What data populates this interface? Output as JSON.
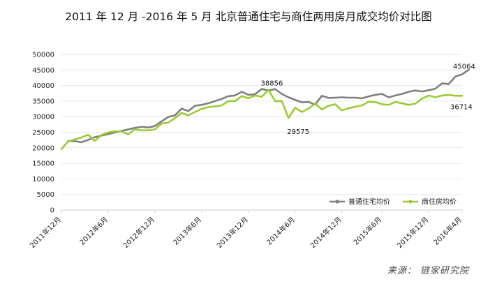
{
  "chart_data": {
    "type": "line",
    "title": "2011 年 12 月 -2016 年 5 月 北京普通住宅与商住两用房月成交均价对比图",
    "ylim": [
      0,
      50000
    ],
    "y_ticks": [
      "50000",
      "45000",
      "40000",
      "35000",
      "30000",
      "25000",
      "20000",
      "15000",
      "10000",
      "5000",
      "0"
    ],
    "x_ticks": [
      "2011年12月",
      "2012年6月",
      "2012年12月",
      "2013年6月",
      "2013年12月",
      "2014年6月",
      "2014年12月",
      "2015年6月",
      "2015年12月",
      "2016年4月"
    ],
    "grid": true,
    "legend_position": "bottom-right",
    "series": [
      {
        "name": "普通住宅均价",
        "color": "#7f7f7f",
        "x_start": 1,
        "values": [
          22200,
          22100,
          21800,
          22500,
          23400,
          23900,
          24400,
          24900,
          25400,
          25900,
          26400,
          26700,
          26500,
          27000,
          28500,
          29900,
          30400,
          32600,
          31800,
          33500,
          33800,
          34300,
          35000,
          35700,
          36600,
          36800,
          38000,
          37000,
          37200,
          38900,
          38400,
          38856,
          37300,
          36200,
          35400,
          34600,
          34700,
          33900,
          36700,
          36000,
          36100,
          36200,
          36100,
          36100,
          35900,
          36500,
          37000,
          37300,
          36200,
          36800,
          37300,
          38000,
          38400,
          38100,
          38500,
          39000,
          40700,
          40500,
          42900,
          43600,
          45064
        ]
      },
      {
        "name": "商住房均价",
        "color": "#99cc33",
        "x_start": 0,
        "values": [
          19600,
          22000,
          22700,
          23300,
          24200,
          22200,
          24100,
          24900,
          25300,
          25200,
          24300,
          25900,
          25600,
          25600,
          25900,
          27800,
          28100,
          29500,
          31200,
          30400,
          31500,
          32500,
          33100,
          33300,
          33600,
          35000,
          35000,
          36600,
          35900,
          36800,
          36400,
          38600,
          35000,
          35000,
          29575,
          32900,
          31500,
          32600,
          34200,
          32300,
          33500,
          34000,
          32000,
          32700,
          33200,
          33600,
          34800,
          34700,
          34000,
          33800,
          34700,
          34300,
          33800,
          34200,
          35800,
          36800,
          36200,
          36800,
          37000,
          36714,
          36714
        ]
      }
    ],
    "annotations": [
      {
        "text": "38856",
        "series": 0,
        "index": 31
      },
      {
        "text": "29575",
        "series": 1,
        "index": 34
      },
      {
        "text": "45064",
        "series": 0,
        "index": 60
      },
      {
        "text": "36714",
        "series": 1,
        "index": 60
      }
    ]
  },
  "source": "来源： 链家研究院"
}
